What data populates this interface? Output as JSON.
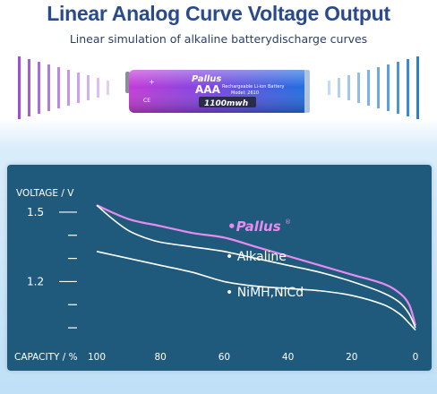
{
  "header": {
    "title": "Linear Analog Curve Voltage Output",
    "subtitle": "Linear simulation of alkaline batterydischarge curves"
  },
  "battery": {
    "brand": "Pallus",
    "size": "AAA",
    "desc_line1": "Rechargeable Li-ion Battery",
    "desc_line2": "Model: 2610",
    "capacity": "1100mwh",
    "plus_mark": "+",
    "ce_mark": "CE"
  },
  "colors": {
    "panel_bg": "#1f5a7c",
    "pallus_curve": "#e98af0",
    "white_curves": "#ffffff",
    "left_bars": "#9b4fd2",
    "right_bars": "#2a7fd0"
  },
  "chart_data": {
    "type": "line",
    "ylabel": "VOLTAGE / V",
    "xlabel": "CAPACITY / %",
    "x_ticks": [
      100,
      80,
      60,
      40,
      20,
      0
    ],
    "y_tick_labels": [
      {
        "value": 1.5,
        "label": "1.5"
      },
      {
        "value": 1.2,
        "label": "1.2"
      }
    ],
    "y_minor_ticks": [
      1.4,
      1.3,
      1.1,
      1.0
    ],
    "xlim": [
      100,
      0
    ],
    "ylim": [
      0.95,
      1.55
    ],
    "series": [
      {
        "name": "Pallus",
        "color": "#e98af0",
        "x": [
          100,
          90,
          80,
          70,
          60,
          50,
          40,
          30,
          20,
          10,
          5,
          2,
          0
        ],
        "y": [
          1.53,
          1.47,
          1.44,
          1.41,
          1.39,
          1.35,
          1.31,
          1.27,
          1.23,
          1.19,
          1.15,
          1.1,
          1.01
        ]
      },
      {
        "name": "Alkaline",
        "color": "#ffffff",
        "x": [
          100,
          95,
          90,
          85,
          80,
          70,
          60,
          50,
          40,
          30,
          20,
          10,
          5,
          2,
          0
        ],
        "y": [
          1.53,
          1.47,
          1.42,
          1.39,
          1.37,
          1.35,
          1.33,
          1.3,
          1.27,
          1.24,
          1.2,
          1.15,
          1.11,
          1.06,
          1.0
        ]
      },
      {
        "name": "NiMH,NiCd",
        "color": "#ffffff",
        "x": [
          100,
          90,
          80,
          70,
          60,
          50,
          40,
          30,
          20,
          10,
          5,
          2,
          0
        ],
        "y": [
          1.33,
          1.3,
          1.27,
          1.24,
          1.2,
          1.18,
          1.17,
          1.16,
          1.14,
          1.1,
          1.06,
          1.02,
          0.99
        ]
      }
    ],
    "labels": [
      {
        "series": "Pallus",
        "text": "Pallus",
        "registered": "®"
      },
      {
        "series": "Alkaline",
        "text": "Alkaline"
      },
      {
        "series": "NiMH,NiCd",
        "text": "NiMH,NiCd"
      }
    ],
    "grid": false,
    "legend": "inline"
  }
}
